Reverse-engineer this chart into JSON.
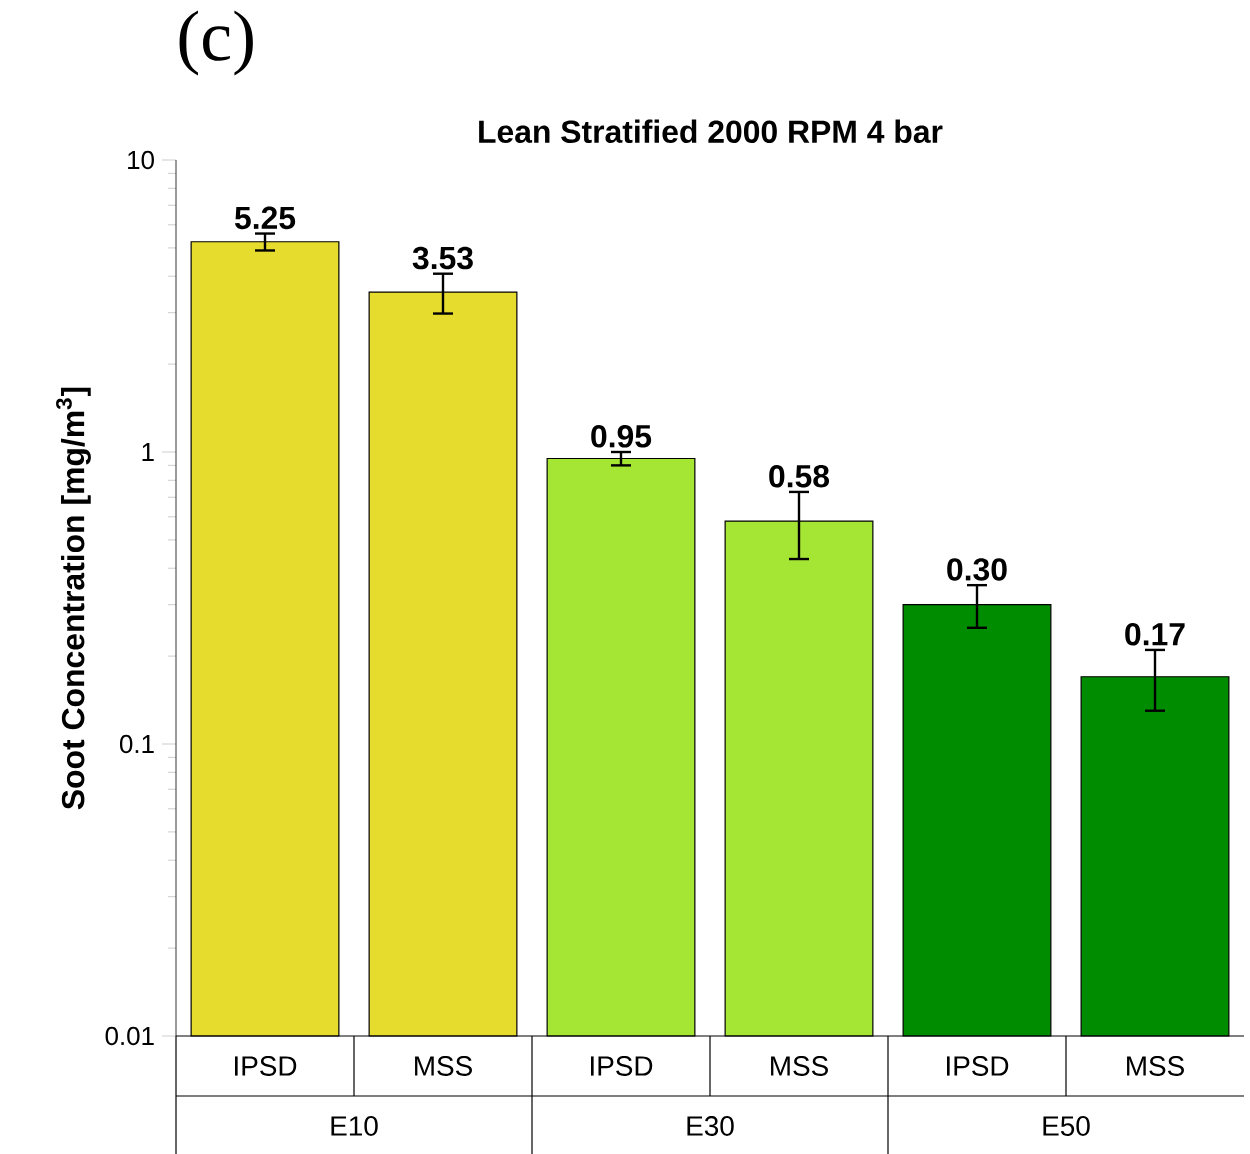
{
  "chart_data": {
    "type": "bar",
    "title": "Lean Stratified 2000 RPM 4 bar",
    "ylabel": "Soot Concentration [mg/m$^{3}$]",
    "categories": [
      "IPSD",
      "MSS",
      "IPSD",
      "MSS",
      "IPSD",
      "MSS"
    ],
    "values": [
      5.25,
      3.53,
      0.95,
      0.58,
      0.3,
      0.17
    ],
    "errors": [
      0.35,
      0.55,
      0.05,
      0.15,
      0.05,
      0.04
    ],
    "value_labels": [
      "5.25",
      "3.53",
      "0.95",
      "0.58",
      "0.30",
      "0.17"
    ],
    "colors": [
      "#e6dc2e",
      "#e6dc2e",
      "#a5e635",
      "#a5e635",
      "#008c00",
      "#008c00"
    ],
    "log": "y",
    "ylim": [
      0.01,
      10
    ],
    "yticks": [
      0.01,
      0.1,
      1,
      10
    ],
    "grid": false,
    "annotations": [
      "(c)",
      "E10",
      "E30",
      "E50"
    ]
  }
}
